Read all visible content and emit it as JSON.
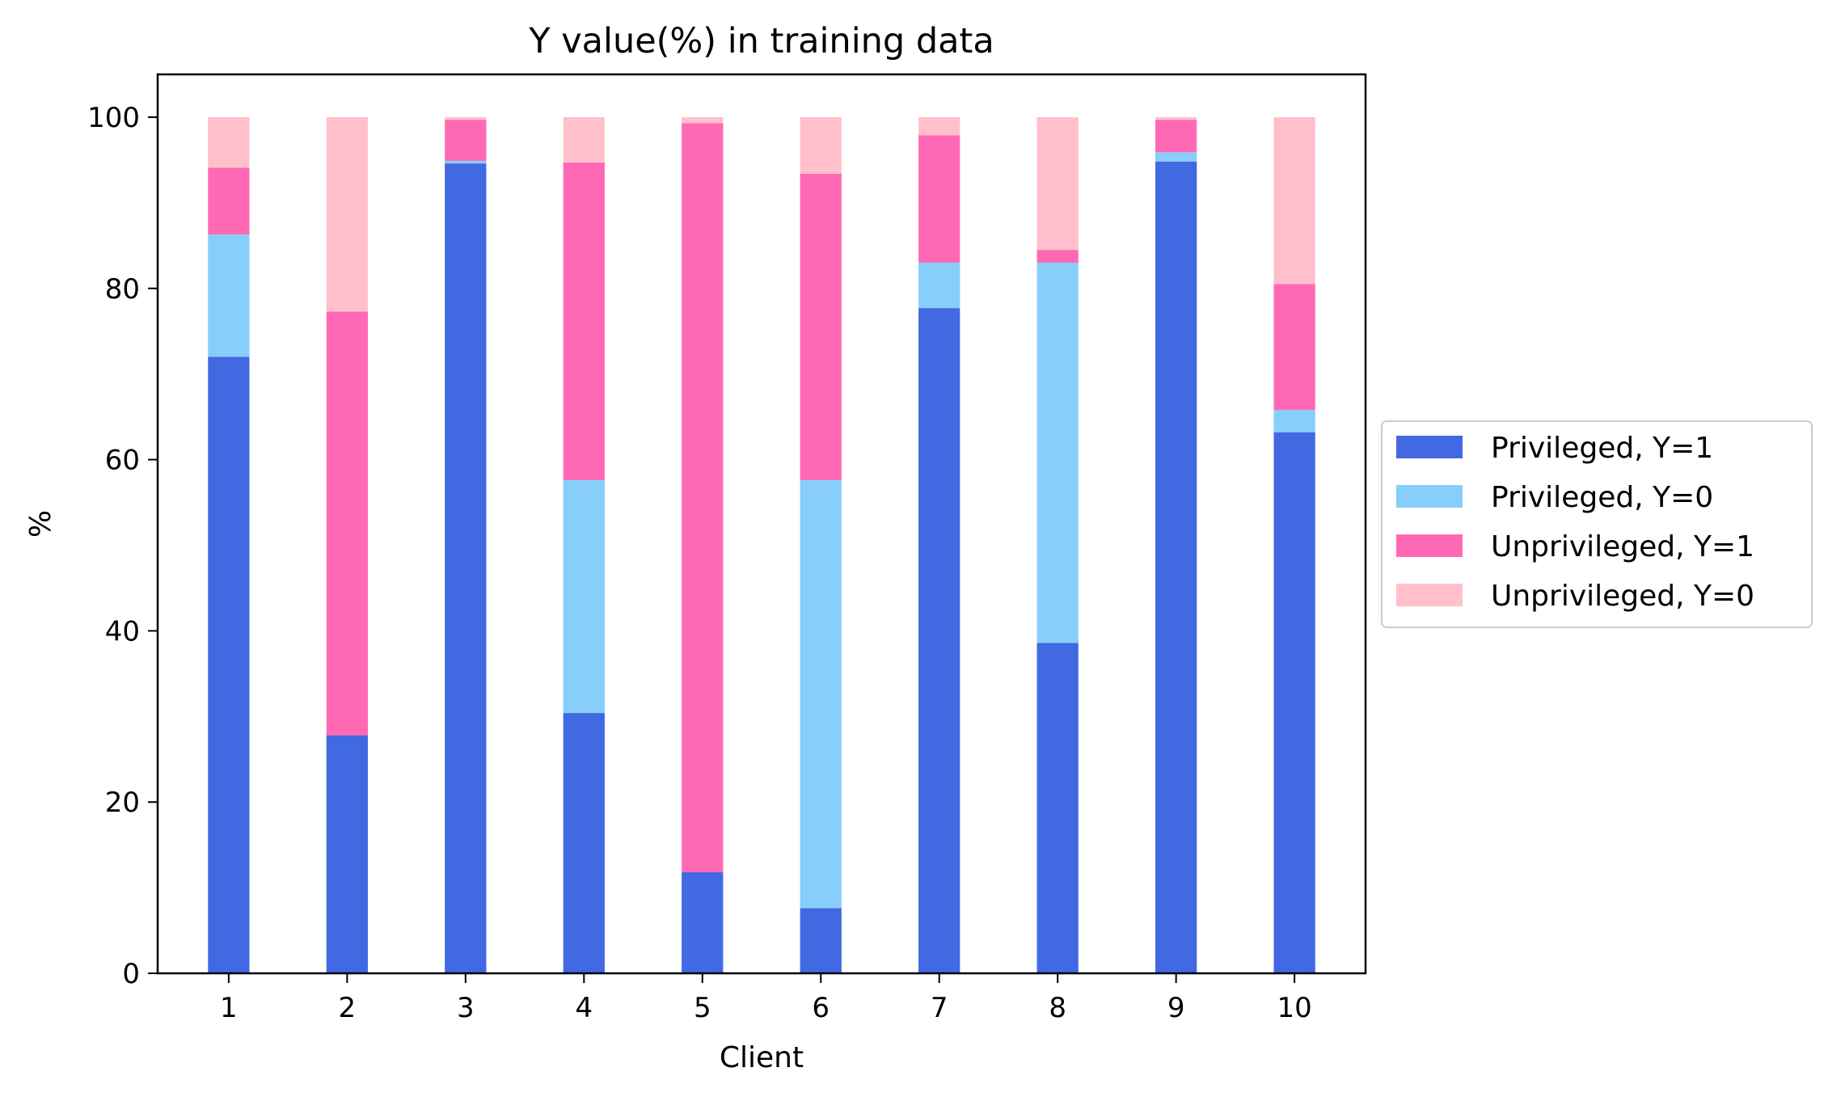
{
  "chart_data": {
    "type": "bar",
    "stacked": true,
    "title": "Y value(%) in training data",
    "xlabel": "Client",
    "ylabel": "%",
    "categories": [
      "1",
      "2",
      "3",
      "4",
      "5",
      "6",
      "7",
      "8",
      "9",
      "10"
    ],
    "yticks": [
      "0",
      "20",
      "40",
      "60",
      "80",
      "100"
    ],
    "ylim": [
      0,
      105
    ],
    "grid": false,
    "legend_position": "center-right-outside",
    "series": [
      {
        "name": "Privileged, Y=1",
        "color": "#4169e1",
        "values": [
          72.0,
          27.8,
          94.6,
          30.4,
          11.8,
          7.6,
          77.7,
          38.6,
          94.8,
          63.2
        ]
      },
      {
        "name": "Privileged, Y=0",
        "color": "#87cefa",
        "values": [
          14.3,
          0.0,
          0.3,
          27.2,
          0.0,
          50.0,
          5.3,
          44.4,
          1.1,
          2.6
        ]
      },
      {
        "name": "Unprivileged, Y=1",
        "color": "#ff69b4",
        "values": [
          7.8,
          49.5,
          4.8,
          37.1,
          87.5,
          35.8,
          14.9,
          1.5,
          3.8,
          14.7
        ]
      },
      {
        "name": "Unprivileged, Y=0",
        "color": "#ffc0cb",
        "values": [
          5.9,
          22.7,
          0.3,
          5.3,
          0.7,
          6.6,
          2.1,
          15.5,
          0.3,
          19.5
        ]
      }
    ]
  }
}
